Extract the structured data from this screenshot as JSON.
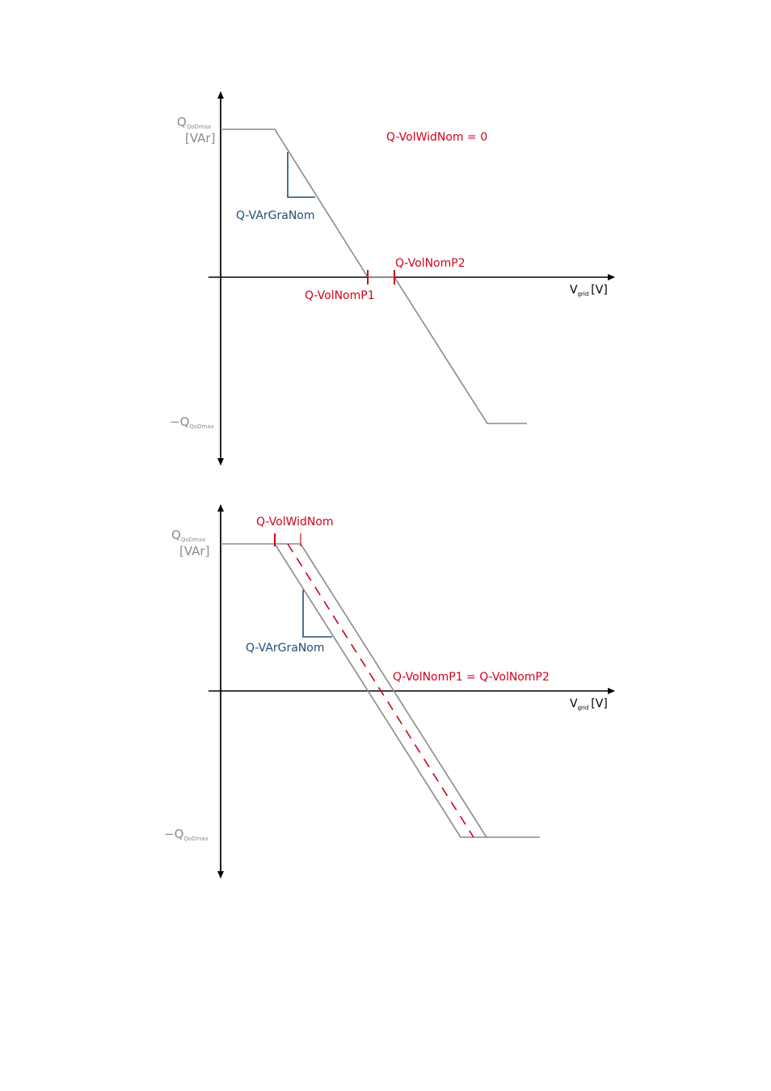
{
  "colors": {
    "curve": "#8a8a8a",
    "highlight": "#d0021b",
    "gradient": "#1f4e79",
    "axis": "#000000"
  },
  "diagram1": {
    "y_label_main": "Q",
    "y_label_sub": "QoDmax",
    "y_unit": "[VAr]",
    "y_neg_prefix": "−Q",
    "y_neg_sub": "QoDmax",
    "x_label_main": "V",
    "x_label_sub": "grid",
    "x_unit": "[V]",
    "condition": "Q-VolWidNom = 0",
    "gradient_label": "Q-VArGraNom",
    "p1_label": "Q-VolNomP1",
    "p2_label": "Q-VolNomP2"
  },
  "diagram2": {
    "y_label_main": "Q",
    "y_label_sub": "QoDmax",
    "y_unit": "[VAr]",
    "y_neg_prefix": "−Q",
    "y_neg_sub": "QoDmax",
    "x_label_main": "V",
    "x_label_sub": "grid",
    "x_unit": "[V]",
    "width_label": "Q-VolWidNom",
    "gradient_label": "Q-VArGraNom",
    "equal_label": "Q-VolNomP1 = Q-VolNomP2"
  }
}
